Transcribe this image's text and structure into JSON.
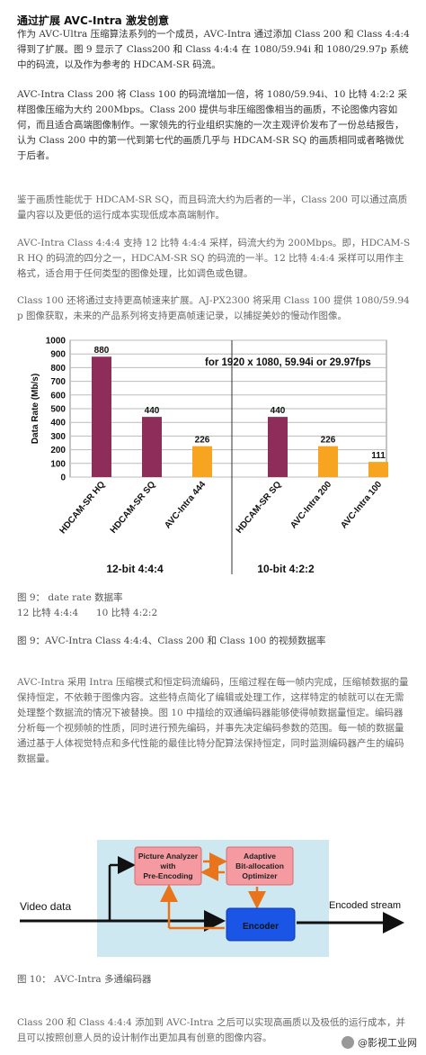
{
  "article": {
    "heading": "通过扩展 AVC-Intra 激发创意",
    "p1": "作为 AVC-Ultra 压缩算法系列的一个成员，AVC-Intra 通过添加 Class 200 和 Class 4:4:4 得到了扩展。图 9 显示了 Class200 和 Class 4:4:4 在 1080/59.94i 和 1080/29.97p 系统中的码流，以及作为参考的 HDCAM-SR 码流。",
    "p2": "AVC-Intra Class 200 将 Class 100 的码流增加一倍，将 1080/59.94i、10 比特 4:2:2 采样图像压缩为大约 200Mbps。Class 200 提供与非压缩图像相当的画质，不论图像内容如何，而且适合高端图像制作。一家领先的行业组织实施的一次主观评价发布了一份总结报告，认为 Class 200 中的第一代到第七代的画质几乎与 HDCAM-SR SQ 的画质相同或者略微优于后者。",
    "p3": "鉴于画质性能优于 HDCAM-SR SQ，而且码流大约为后者的一半，Class 200 可以通过高质量内容以及更低的运行成本实现低成本高端制作。",
    "p4": "AVC-Intra Class 4:4:4 支持 12 比特 4:4:4 采样，码流大约为 200Mbps。即，HDCAM-SR HQ 的码流的四分之一，HDCAM-SR SQ 的码流的一半。12 比特 4:4:4 采样可以用作主格式，适合用于任何类型的图像处理，比如调色或色键。",
    "p5": "Class 100 还将通过支持更高帧速来扩展。AJ-PX2300 将采用 Class 100 提供 1080/59.94p 图像获取，未来的产品系列将支持更高帧速记录，以捕捉美妙的慢动作图像。",
    "fig9_line1": "图 9：     date rate  数据率",
    "fig9_line2_a": "12 比特 4:4:4",
    "fig9_line2_b": "10 比特 4:2:2",
    "fig9_title": "图 9：AVC-Intra Class 4:4:4、Class 200 和 Class 100 的视频数据率",
    "p6": "AVC-Intra 采用 Intra 压缩模式和恒定码流编码，压缩过程在每一帧内完成，压缩帧数据的量保持恒定，不依赖于图像内容。这些特点简化了编辑或处理工作，这样特定的帧就可以在无需处理整个数据流的情况下被替换。图 10 中描绘的双通编码器能够使得帧数据量恒定。编码器分析每一个视频帧的性质，同时进行预先编码，并事先决定编码参数的范围。每一帧的数据量通过基于人体视觉特点和多代性能的最佳比特分配算法保持恒定，同时监测编码器产生的编码数据量。",
    "fig10_title": "图 10：    AVC-Intra 多通编码器",
    "p7": "Class 200 和 Class 4:4:4 添加到 AVC-Intra 之后可以实现高画质以及极低的运行成本，并且可以按照创意人员的设计制作出更加具有创意的图像内容。"
  },
  "chart_data": {
    "type": "bar",
    "ylabel": "Data Rate (Mb/s)",
    "ylim": [
      0,
      1000
    ],
    "yticks": [
      0,
      100,
      200,
      300,
      400,
      500,
      600,
      700,
      800,
      900,
      1000
    ],
    "annotation": "for  1920 x 1080, 59.94i or 29.97fps",
    "groups": [
      {
        "name": "12-bit 4:4:4",
        "bars": [
          {
            "label": "HDCAM-SR HQ",
            "value": 880,
            "color": "#8e2d5a"
          },
          {
            "label": "HDCAM-SR SQ",
            "value": 440,
            "color": "#8e2d5a"
          },
          {
            "label": "AVC-Intra 444",
            "value": 226,
            "color": "#f7a521"
          }
        ]
      },
      {
        "name": "10-bit 4:2:2",
        "bars": [
          {
            "label": "HDCAM-SR SQ",
            "value": 440,
            "color": "#8e2d5a"
          },
          {
            "label": "AVC-Intra 200",
            "value": 226,
            "color": "#f7a521"
          },
          {
            "label": "AVC-Intra 100",
            "value": 111,
            "color": "#f7a521"
          }
        ]
      }
    ]
  },
  "diagram": {
    "input_label": "Video data",
    "output_label": "Encoded stream",
    "analyzer_label": [
      "Picture Analyzer",
      "with",
      "Pre-Encoding"
    ],
    "optimizer_label": [
      "Adaptive",
      "Bit-allocation",
      "Optimizer"
    ],
    "encoder_label": "Encoder",
    "colors": {
      "panel": "#cde8f1",
      "pink": "#f59aa0",
      "blue": "#1a55e6",
      "arrow": "#e8741c"
    }
  },
  "watermark": {
    "text": "@影视工业网"
  }
}
